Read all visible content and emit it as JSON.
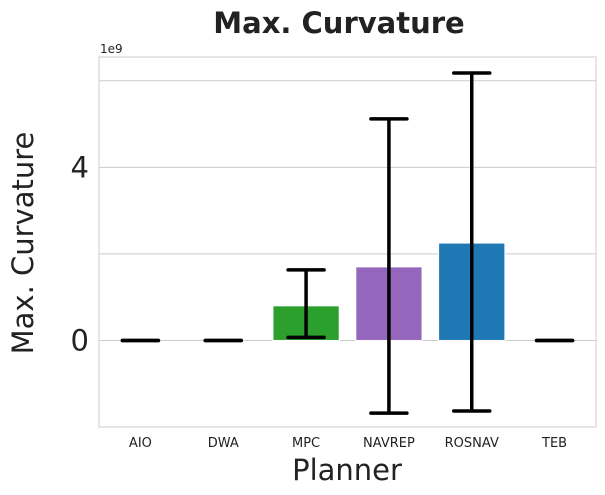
{
  "chart_data": {
    "type": "bar",
    "title": "Max. Curvature",
    "xlabel": "Planner",
    "ylabel": "Max. Curvature",
    "y_offset_label": "1e9",
    "y_scale_exponent": 9,
    "categories": [
      "AIO",
      "DWA",
      "MPC",
      "NAVREP",
      "ROSNAV",
      "TEB"
    ],
    "values": [
      0.0,
      0.0,
      0.8,
      1.7,
      2.25,
      0.0
    ],
    "error_low": [
      0.0,
      0.0,
      0.07,
      -1.68,
      -1.63,
      0.0
    ],
    "error_high": [
      0.0,
      0.0,
      1.63,
      5.12,
      6.18,
      0.0
    ],
    "colors": [
      "#2ca02c",
      "#2ca02c",
      "#2ca02c",
      "#9467bd",
      "#1f77b4",
      "#2ca02c"
    ],
    "error_color": "#000000",
    "yticks": [
      0,
      4
    ],
    "ytick_labels": [
      "0",
      "4"
    ],
    "ylim": [
      -2.0,
      6.55
    ],
    "grid": true
  }
}
